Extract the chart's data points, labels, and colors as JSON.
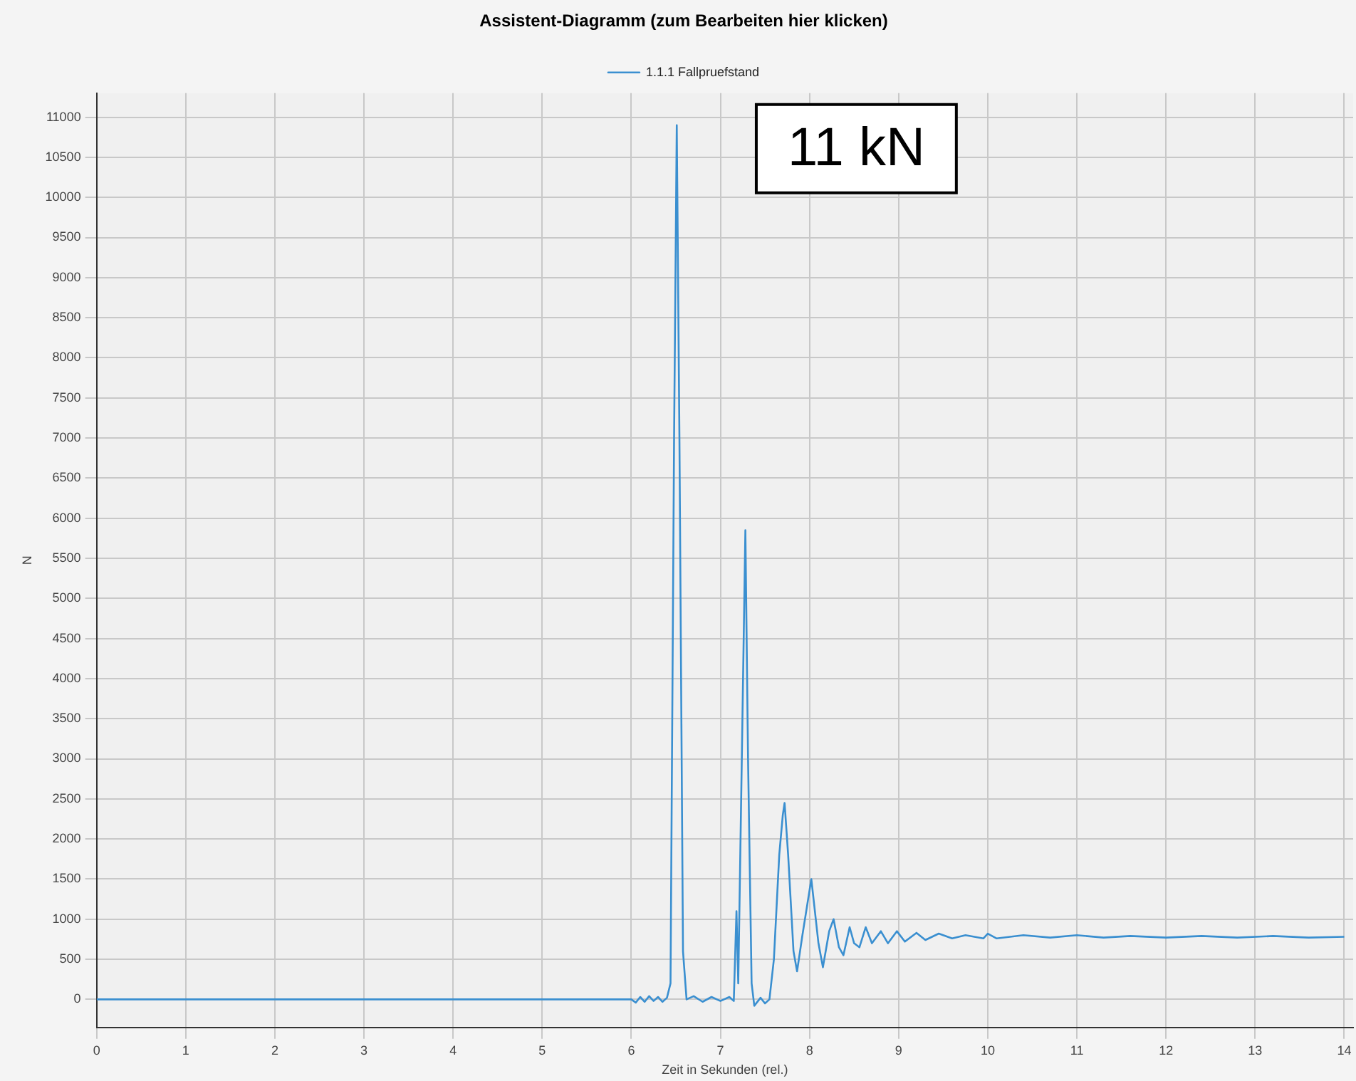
{
  "chart_data": {
    "type": "line",
    "title": "Assistent-Diagramm (zum Bearbeiten hier klicken)",
    "xlabel": "Zeit in Sekunden (rel.)",
    "ylabel": "N",
    "annotations": [
      "11 kN"
    ],
    "xlim": [
      0,
      14.1
    ],
    "ylim": [
      -350,
      11300
    ],
    "xticks": [
      0,
      1,
      2,
      3,
      4,
      5,
      6,
      7,
      8,
      9,
      10,
      11,
      12,
      13,
      14
    ],
    "yticks": [
      0,
      500,
      1000,
      1500,
      2000,
      2500,
      3000,
      3500,
      4000,
      4500,
      5000,
      5500,
      6000,
      6500,
      7000,
      7500,
      8000,
      8500,
      9000,
      9500,
      10000,
      10500,
      11000
    ],
    "grid": true,
    "legend": "top",
    "marker": "none",
    "line_style": "solid",
    "series": [
      {
        "name": "1.1.1 Fallpruefstand",
        "color": "#3a8fd0",
        "x": [
          0,
          1,
          2,
          3,
          4,
          5,
          6,
          6.05,
          6.1,
          6.15,
          6.2,
          6.25,
          6.3,
          6.35,
          6.4,
          6.44,
          6.48,
          6.51,
          6.54,
          6.58,
          6.62,
          6.7,
          6.8,
          6.9,
          7,
          7.1,
          7.15,
          7.18,
          7.2,
          7.24,
          7.28,
          7.31,
          7.35,
          7.38,
          7.45,
          7.5,
          7.55,
          7.6,
          7.66,
          7.7,
          7.72,
          7.76,
          7.82,
          7.86,
          7.92,
          8.02,
          8.1,
          8.15,
          8.22,
          8.27,
          8.33,
          8.38,
          8.45,
          8.5,
          8.56,
          8.63,
          8.7,
          8.8,
          8.88,
          8.98,
          9.07,
          9.2,
          9.3,
          9.45,
          9.6,
          9.75,
          9.95,
          10,
          10.1,
          10.4,
          10.7,
          11,
          11.3,
          11.6,
          12,
          12.4,
          12.8,
          13.2,
          13.6,
          14
        ],
        "values": [
          0,
          0,
          0,
          0,
          0,
          0,
          0,
          -40,
          30,
          -30,
          40,
          -20,
          30,
          -30,
          20,
          200,
          7000,
          10900,
          7000,
          600,
          0,
          40,
          -30,
          30,
          -20,
          30,
          -20,
          1100,
          200,
          3000,
          5850,
          3000,
          200,
          -80,
          20,
          -50,
          0,
          500,
          1800,
          2300,
          2450,
          1800,
          600,
          350,
          800,
          1500,
          700,
          400,
          850,
          1000,
          650,
          550,
          900,
          700,
          650,
          900,
          700,
          850,
          700,
          850,
          720,
          830,
          740,
          820,
          760,
          800,
          760,
          820,
          760,
          800,
          770,
          800,
          770,
          790,
          770,
          790,
          770,
          790,
          770,
          780
        ]
      }
    ]
  }
}
